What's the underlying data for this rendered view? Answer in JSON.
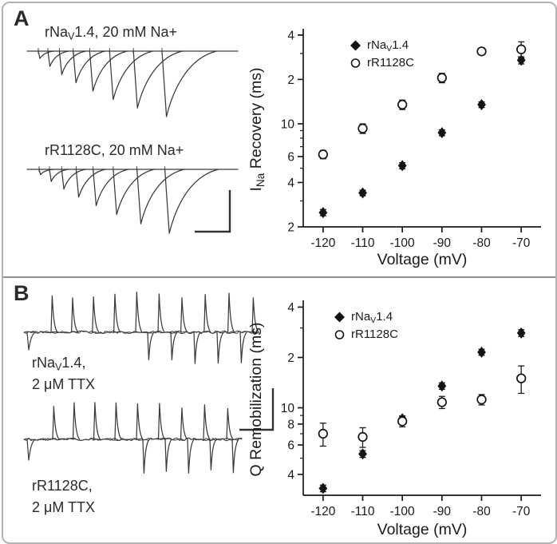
{
  "panelA": {
    "label": "A",
    "trace1_title": {
      "pre": "rNa",
      "sub": "V",
      "post": "1.4, 20 mM Na+"
    },
    "trace2_title": {
      "pre": "rR1128C, 20 mM Na+",
      "sub": "",
      "post": ""
    }
  },
  "panelB": {
    "label": "B",
    "trace1_title_line1": {
      "pre": "rNa",
      "sub": "V",
      "post": "1.4,"
    },
    "trace1_title_line2": "2 μM TTX",
    "trace2_title_line1": {
      "pre": "rR1128C,",
      "sub": "",
      "post": ""
    },
    "trace2_title_line2": "2 μM TTX"
  },
  "traces": [
    {
      "id": "A1",
      "kind": "inward_recovery",
      "n_pulses": 8
    },
    {
      "id": "A2",
      "kind": "inward_recovery",
      "n_pulses": 8
    },
    {
      "id": "B1",
      "kind": "gating_current",
      "n_up": 10,
      "n_down": 5
    },
    {
      "id": "B2",
      "kind": "gating_current",
      "n_up": 9,
      "n_down": 5
    }
  ],
  "chart_data": [
    {
      "type": "scatter",
      "panel": "A",
      "xlabel": "Voltage (mV)",
      "ylabel": "INa Recovery (ms)",
      "ylabel_parts": {
        "pre": "I",
        "sub": "Na",
        "post": " Recovery (ms)"
      },
      "xscale": "linear",
      "yscale": "log",
      "xlim": [
        -125,
        -65
      ],
      "ylim": [
        2,
        42
      ],
      "x": [
        -120,
        -110,
        -100,
        -90,
        -80,
        -70
      ],
      "xtick_labels": [
        "-120",
        "-110",
        "-100",
        "-90",
        "-80",
        "-70"
      ],
      "yticks": {
        "values": [
          2,
          4,
          6,
          10,
          20,
          40
        ],
        "labels": [
          "2",
          "4",
          "6",
          "10",
          "2",
          "4"
        ],
        "minor": [
          3,
          5,
          7,
          8,
          9,
          30
        ]
      },
      "grid": false,
      "legend_position": "top-left",
      "series": [
        {
          "name": "rNaV1.4",
          "label_parts": {
            "pre": "rNa",
            "sub": "V",
            "post": "1.4"
          },
          "marker": "filled-diamond",
          "values": [
            2.5,
            3.4,
            5.2,
            8.7,
            13.5,
            27
          ],
          "errors": [
            0.12,
            0.15,
            0.25,
            0.4,
            0.6,
            1.5
          ]
        },
        {
          "name": "rR1128C",
          "label_parts": {
            "pre": "rR1128C",
            "sub": "",
            "post": ""
          },
          "marker": "open-circle",
          "values": [
            6.2,
            9.3,
            13.5,
            20.5,
            31,
            32
          ],
          "errors": [
            0.4,
            0.7,
            1.0,
            1.5,
            1.6,
            4.0
          ]
        }
      ]
    },
    {
      "type": "scatter",
      "panel": "B",
      "xlabel": "Voltage (mV)",
      "ylabel": "Q Remobilization (ms)",
      "ylabel_parts": {
        "pre": "Q Remobilization (ms)",
        "sub": "",
        "post": ""
      },
      "xscale": "linear",
      "yscale": "log",
      "xlim": [
        -125,
        -65
      ],
      "ylim": [
        3,
        42
      ],
      "x": [
        -120,
        -110,
        -100,
        -90,
        -80,
        -70
      ],
      "xtick_labels": [
        "-120",
        "-110",
        "-100",
        "-90",
        "-80",
        "-70"
      ],
      "yticks": {
        "values": [
          4,
          6,
          8,
          10,
          20,
          40
        ],
        "labels": [
          "4",
          "6",
          "8",
          "10",
          "2",
          "4"
        ],
        "minor": [
          5,
          7,
          9,
          30
        ]
      },
      "grid": false,
      "legend_position": "top-left",
      "series": [
        {
          "name": "rNaV1.4",
          "label_parts": {
            "pre": "rNa",
            "sub": "V",
            "post": "1.4"
          },
          "marker": "filled-diamond",
          "values": [
            3.3,
            5.3,
            8.6,
            13.5,
            21.5,
            28
          ],
          "errors": [
            0.15,
            0.25,
            0.35,
            0.6,
            0.9,
            1.3
          ]
        },
        {
          "name": "rR1128C",
          "label_parts": {
            "pre": "rR1128C",
            "sub": "",
            "post": ""
          },
          "marker": "open-circle",
          "values": [
            7.0,
            6.7,
            8.3,
            10.8,
            11.2,
            15.0
          ],
          "errors": [
            1.1,
            0.9,
            0.6,
            0.9,
            0.8,
            2.8
          ]
        }
      ]
    }
  ]
}
